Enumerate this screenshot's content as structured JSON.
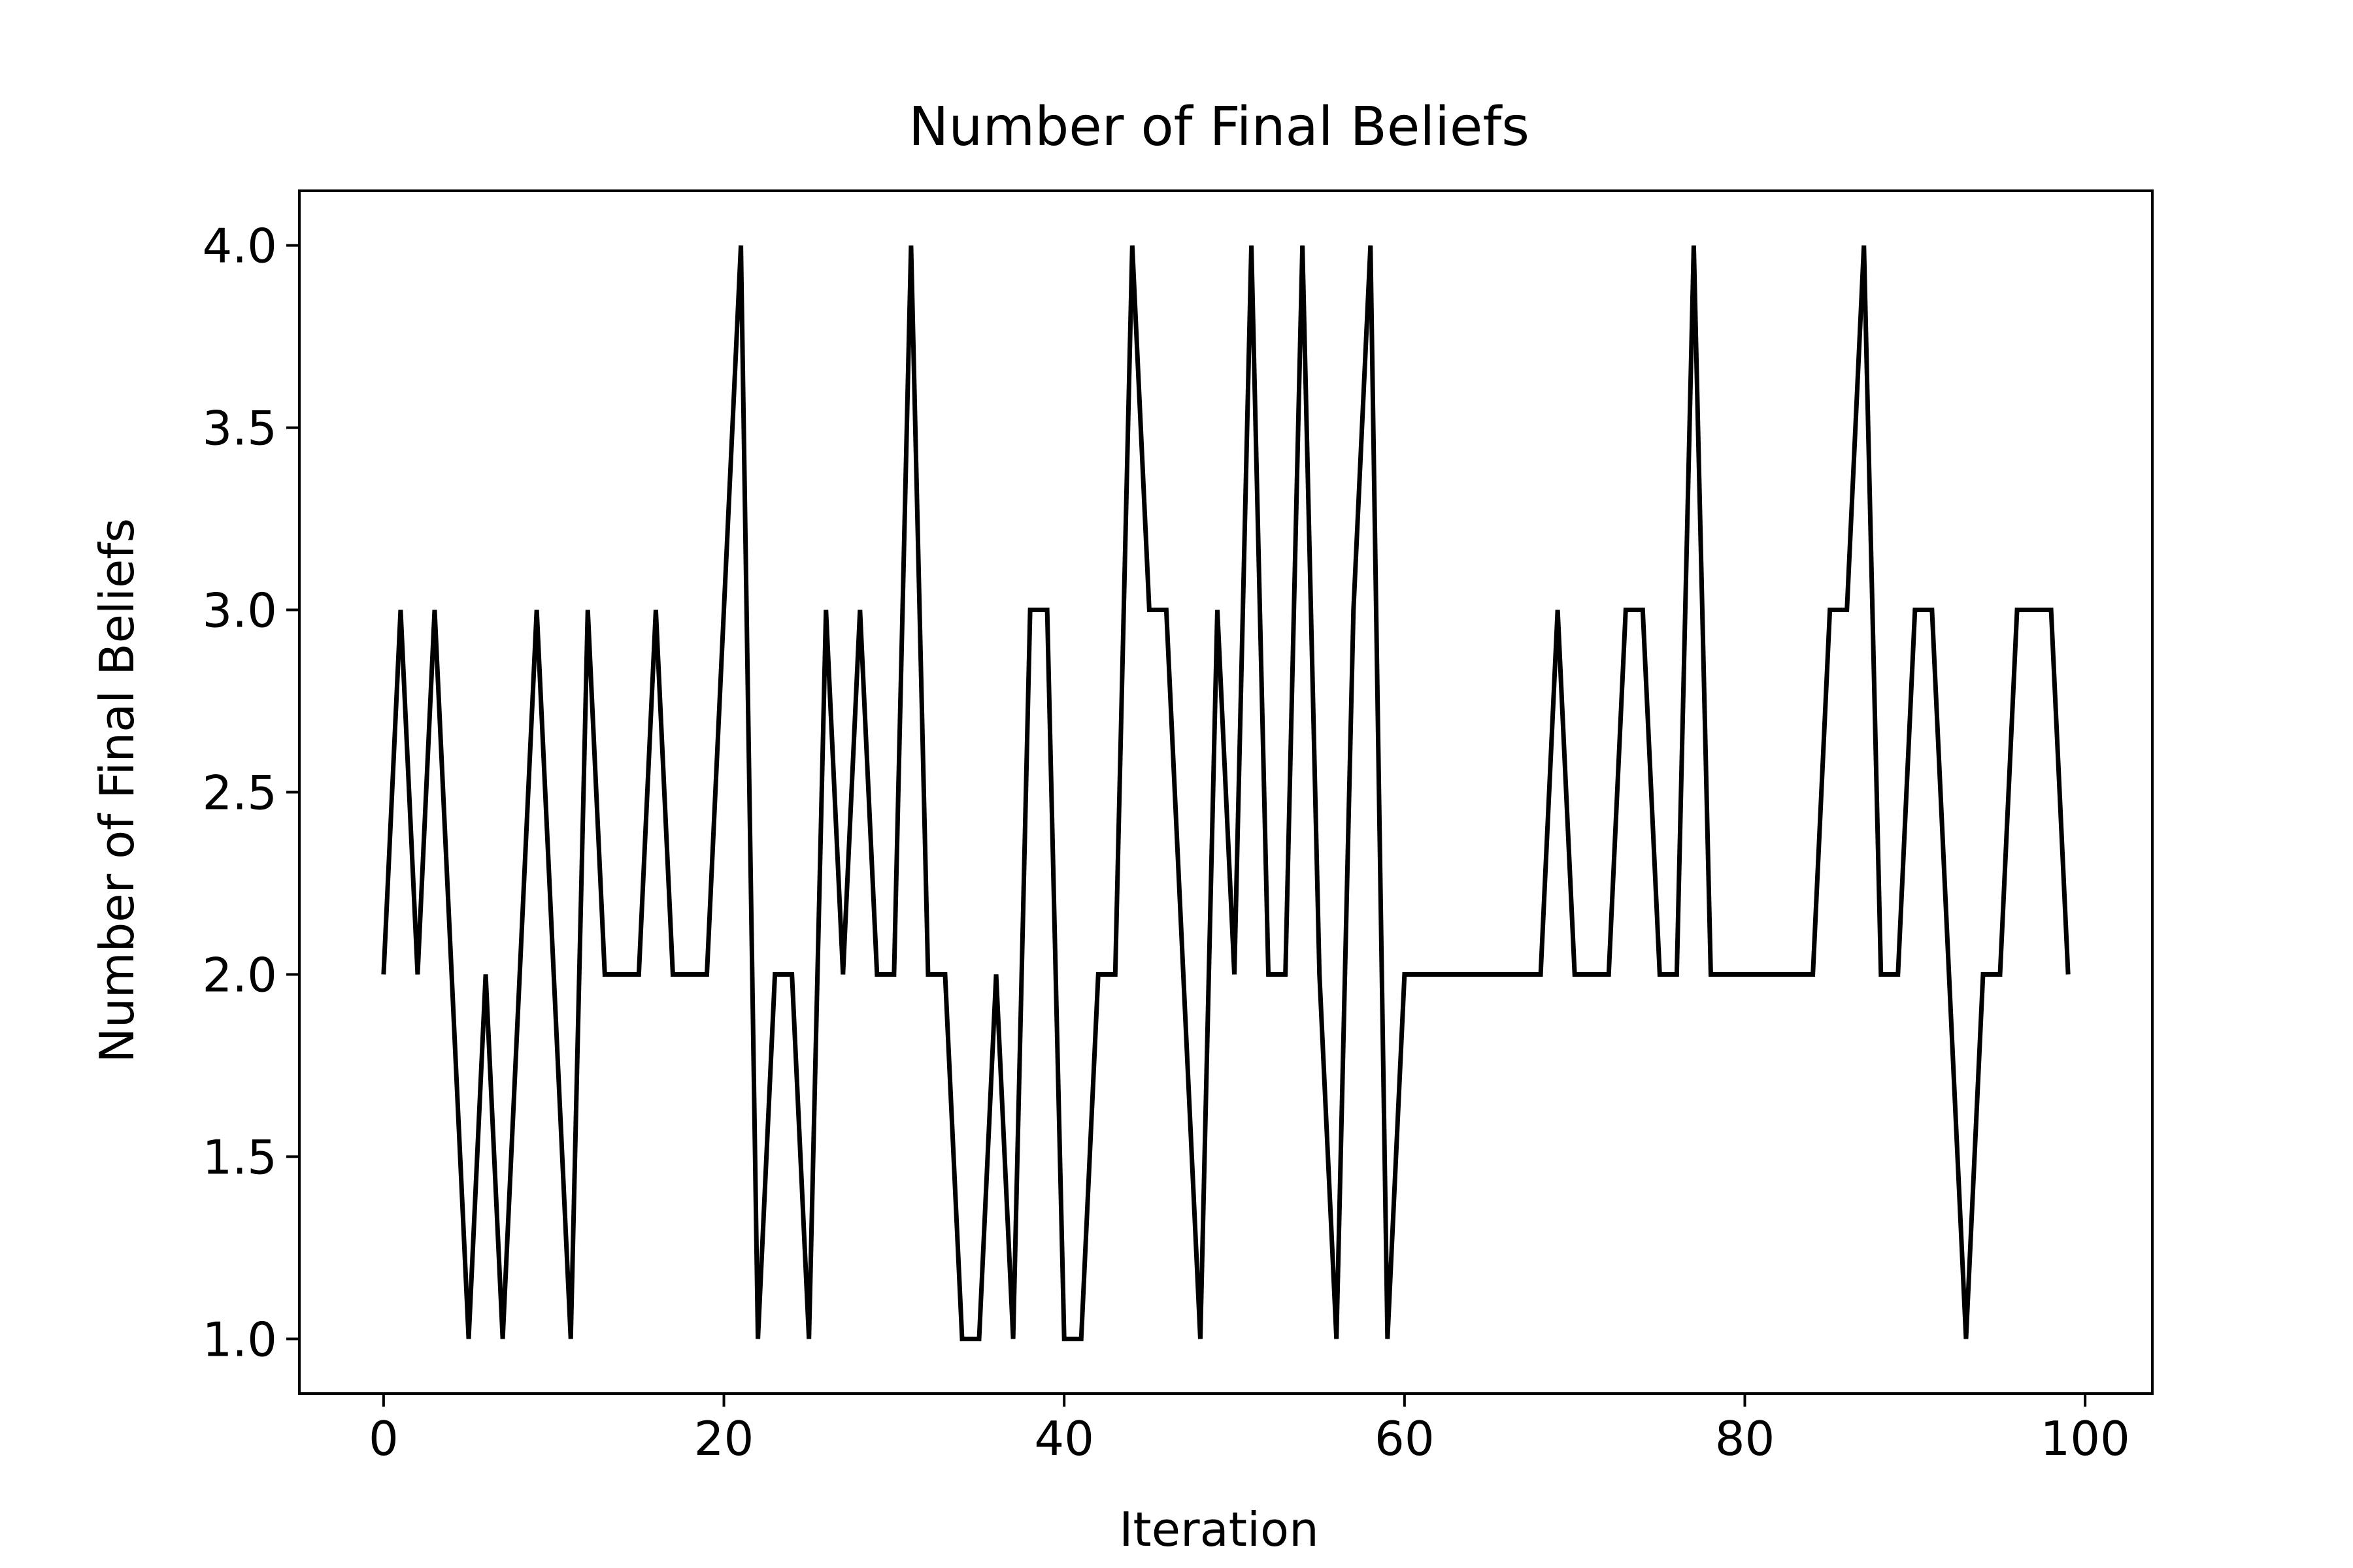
{
  "chart_data": {
    "type": "line",
    "title": "Number of Final Beliefs",
    "xlabel": "Iteration",
    "ylabel": "Number of Final Beliefs",
    "xlim": [
      -4.95,
      103.95
    ],
    "ylim": [
      0.85,
      4.15
    ],
    "grid": false,
    "legend": "none",
    "line_color": "#000000",
    "xticks": [
      0,
      20,
      40,
      60,
      80,
      100
    ],
    "xtick_labels": [
      "0",
      "20",
      "40",
      "60",
      "80",
      "100"
    ],
    "yticks": [
      1.0,
      1.5,
      2.0,
      2.5,
      3.0,
      3.5,
      4.0
    ],
    "ytick_labels": [
      "1.0",
      "1.5",
      "2.0",
      "2.5",
      "3.0",
      "3.5",
      "4.0"
    ],
    "series": [
      {
        "name": "Number of Final Beliefs",
        "x": [
          0,
          1,
          2,
          3,
          4,
          5,
          6,
          7,
          8,
          9,
          10,
          11,
          12,
          13,
          14,
          15,
          16,
          17,
          18,
          19,
          20,
          21,
          22,
          23,
          24,
          25,
          26,
          27,
          28,
          29,
          30,
          31,
          32,
          33,
          34,
          35,
          36,
          37,
          38,
          39,
          40,
          41,
          42,
          43,
          44,
          45,
          46,
          47,
          48,
          49,
          50,
          51,
          52,
          53,
          54,
          55,
          56,
          57,
          58,
          59,
          60,
          61,
          62,
          63,
          64,
          65,
          66,
          67,
          68,
          69,
          70,
          71,
          72,
          73,
          74,
          75,
          76,
          77,
          78,
          79,
          80,
          81,
          82,
          83,
          84,
          85,
          86,
          87,
          88,
          89,
          90,
          91,
          92,
          93,
          94,
          95,
          96,
          97,
          98,
          99
        ],
        "values": [
          2,
          3,
          2,
          3,
          2,
          1,
          2,
          1,
          2,
          3,
          2,
          1,
          3,
          2,
          2,
          2,
          3,
          2,
          2,
          2,
          3,
          4,
          1,
          2,
          2,
          1,
          3,
          2,
          3,
          2,
          2,
          4,
          2,
          2,
          1,
          1,
          2,
          1,
          3,
          3,
          1,
          1,
          2,
          2,
          4,
          3,
          3,
          2,
          1,
          3,
          2,
          4,
          2,
          2,
          4,
          2,
          1,
          3,
          4,
          1,
          2,
          2,
          2,
          2,
          2,
          2,
          2,
          2,
          2,
          3,
          2,
          2,
          2,
          3,
          3,
          2,
          2,
          4,
          2,
          2,
          2,
          2,
          2,
          2,
          2,
          3,
          3,
          4,
          2,
          2,
          3,
          3,
          2,
          1,
          2,
          2,
          3,
          3,
          3,
          2
        ]
      }
    ]
  }
}
